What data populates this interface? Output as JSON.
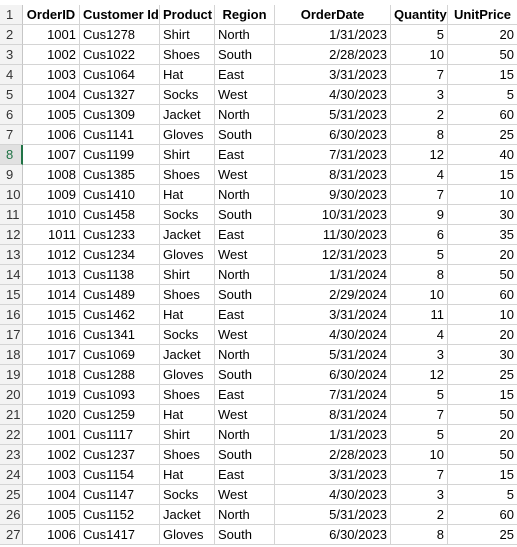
{
  "headers": [
    "OrderID",
    "Customer Id",
    "Product",
    "Region",
    "OrderDate",
    "Quantity",
    "UnitPrice"
  ],
  "row_numbers": [
    "1",
    "2",
    "3",
    "4",
    "5",
    "6",
    "7",
    "8",
    "9",
    "10",
    "11",
    "12",
    "13",
    "14",
    "15",
    "16",
    "17",
    "18",
    "19",
    "20",
    "21",
    "22",
    "23",
    "24",
    "25",
    "26",
    "27"
  ],
  "active_row": "8",
  "rows": [
    [
      "1001",
      "Cus1278",
      "Shirt",
      "North",
      "1/31/2023",
      "5",
      "20"
    ],
    [
      "1002",
      "Cus1022",
      "Shoes",
      "South",
      "2/28/2023",
      "10",
      "50"
    ],
    [
      "1003",
      "Cus1064",
      "Hat",
      "East",
      "3/31/2023",
      "7",
      "15"
    ],
    [
      "1004",
      "Cus1327",
      "Socks",
      "West",
      "4/30/2023",
      "3",
      "5"
    ],
    [
      "1005",
      "Cus1309",
      "Jacket",
      "North",
      "5/31/2023",
      "2",
      "60"
    ],
    [
      "1006",
      "Cus1141",
      "Gloves",
      "South",
      "6/30/2023",
      "8",
      "25"
    ],
    [
      "1007",
      "Cus1199",
      "Shirt",
      "East",
      "7/31/2023",
      "12",
      "40"
    ],
    [
      "1008",
      "Cus1385",
      "Shoes",
      "West",
      "8/31/2023",
      "4",
      "15"
    ],
    [
      "1009",
      "Cus1410",
      "Hat",
      "North",
      "9/30/2023",
      "7",
      "10"
    ],
    [
      "1010",
      "Cus1458",
      "Socks",
      "South",
      "10/31/2023",
      "9",
      "30"
    ],
    [
      "1011",
      "Cus1233",
      "Jacket",
      "East",
      "11/30/2023",
      "6",
      "35"
    ],
    [
      "1012",
      "Cus1234",
      "Gloves",
      "West",
      "12/31/2023",
      "5",
      "20"
    ],
    [
      "1013",
      "Cus1138",
      "Shirt",
      "North",
      "1/31/2024",
      "8",
      "50"
    ],
    [
      "1014",
      "Cus1489",
      "Shoes",
      "South",
      "2/29/2024",
      "10",
      "60"
    ],
    [
      "1015",
      "Cus1462",
      "Hat",
      "East",
      "3/31/2024",
      "11",
      "10"
    ],
    [
      "1016",
      "Cus1341",
      "Socks",
      "West",
      "4/30/2024",
      "4",
      "20"
    ],
    [
      "1017",
      "Cus1069",
      "Jacket",
      "North",
      "5/31/2024",
      "3",
      "30"
    ],
    [
      "1018",
      "Cus1288",
      "Gloves",
      "South",
      "6/30/2024",
      "12",
      "25"
    ],
    [
      "1019",
      "Cus1093",
      "Shoes",
      "East",
      "7/31/2024",
      "5",
      "15"
    ],
    [
      "1020",
      "Cus1259",
      "Hat",
      "West",
      "8/31/2024",
      "7",
      "50"
    ],
    [
      "1001",
      "Cus1117",
      "Shirt",
      "North",
      "1/31/2023",
      "5",
      "20"
    ],
    [
      "1002",
      "Cus1237",
      "Shoes",
      "South",
      "2/28/2023",
      "10",
      "50"
    ],
    [
      "1003",
      "Cus1154",
      "Hat",
      "East",
      "3/31/2023",
      "7",
      "15"
    ],
    [
      "1004",
      "Cus1147",
      "Socks",
      "West",
      "4/30/2023",
      "3",
      "5"
    ],
    [
      "1005",
      "Cus1152",
      "Jacket",
      "North",
      "5/31/2023",
      "2",
      "60"
    ],
    [
      "1006",
      "Cus1417",
      "Gloves",
      "South",
      "6/30/2023",
      "8",
      "25"
    ]
  ]
}
